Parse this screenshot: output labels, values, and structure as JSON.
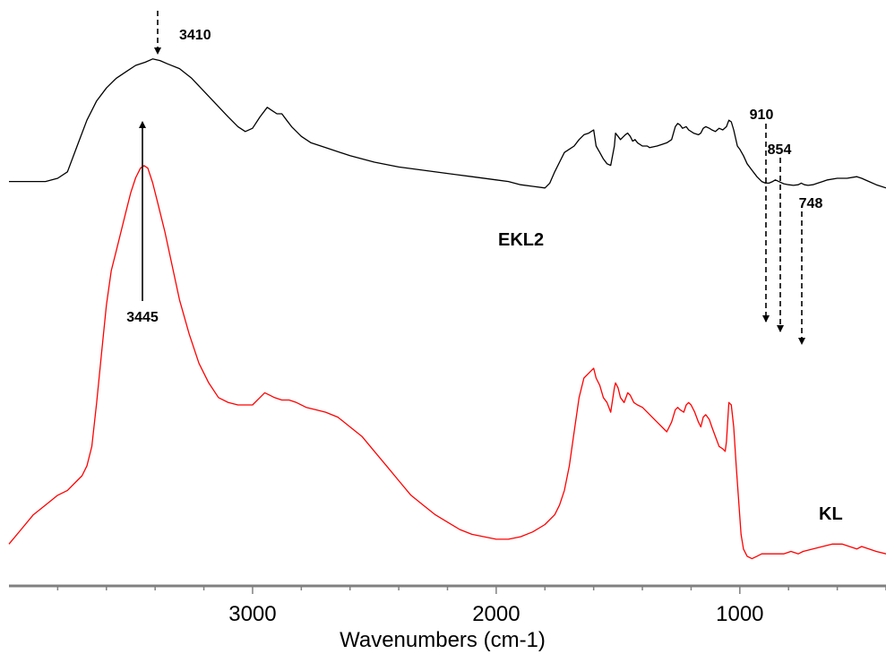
{
  "chart_data": {
    "type": "line",
    "title": "",
    "xlabel": "Wavenumbers (cm-1)",
    "ylabel": "",
    "xlim": [
      4000,
      400
    ],
    "x_reversed": true,
    "xticks": [
      3000,
      2000,
      1000
    ],
    "ylim": [
      0,
      1
    ],
    "grid": false,
    "legend": "none",
    "series": [
      {
        "name": "EKL2",
        "color": "#000000",
        "points": [
          [
            4000,
            0.59
          ],
          [
            3950,
            0.59
          ],
          [
            3900,
            0.59
          ],
          [
            3850,
            0.59
          ],
          [
            3800,
            0.6
          ],
          [
            3760,
            0.62
          ],
          [
            3720,
            0.7
          ],
          [
            3680,
            0.78
          ],
          [
            3640,
            0.84
          ],
          [
            3600,
            0.88
          ],
          [
            3560,
            0.91
          ],
          [
            3520,
            0.93
          ],
          [
            3480,
            0.95
          ],
          [
            3440,
            0.96
          ],
          [
            3410,
            0.97
          ],
          [
            3380,
            0.965
          ],
          [
            3350,
            0.955
          ],
          [
            3300,
            0.94
          ],
          [
            3250,
            0.91
          ],
          [
            3200,
            0.87
          ],
          [
            3150,
            0.83
          ],
          [
            3100,
            0.79
          ],
          [
            3060,
            0.76
          ],
          [
            3030,
            0.745
          ],
          [
            3000,
            0.755
          ],
          [
            2970,
            0.79
          ],
          [
            2940,
            0.82
          ],
          [
            2920,
            0.81
          ],
          [
            2900,
            0.8
          ],
          [
            2880,
            0.8
          ],
          [
            2860,
            0.78
          ],
          [
            2840,
            0.76
          ],
          [
            2800,
            0.73
          ],
          [
            2760,
            0.71
          ],
          [
            2700,
            0.695
          ],
          [
            2600,
            0.67
          ],
          [
            2500,
            0.65
          ],
          [
            2400,
            0.635
          ],
          [
            2300,
            0.625
          ],
          [
            2200,
            0.615
          ],
          [
            2100,
            0.605
          ],
          [
            2000,
            0.595
          ],
          [
            1950,
            0.59
          ],
          [
            1900,
            0.58
          ],
          [
            1850,
            0.575
          ],
          [
            1800,
            0.57
          ],
          [
            1780,
            0.585
          ],
          [
            1760,
            0.62
          ],
          [
            1740,
            0.65
          ],
          [
            1720,
            0.68
          ],
          [
            1700,
            0.69
          ],
          [
            1680,
            0.7
          ],
          [
            1660,
            0.72
          ],
          [
            1640,
            0.735
          ],
          [
            1620,
            0.74
          ],
          [
            1610,
            0.745
          ],
          [
            1600,
            0.75
          ],
          [
            1590,
            0.7
          ],
          [
            1575,
            0.68
          ],
          [
            1560,
            0.66
          ],
          [
            1545,
            0.645
          ],
          [
            1530,
            0.64
          ],
          [
            1515,
            0.7
          ],
          [
            1510,
            0.74
          ],
          [
            1500,
            0.73
          ],
          [
            1490,
            0.72
          ],
          [
            1470,
            0.735
          ],
          [
            1460,
            0.74
          ],
          [
            1450,
            0.73
          ],
          [
            1440,
            0.715
          ],
          [
            1430,
            0.72
          ],
          [
            1420,
            0.71
          ],
          [
            1400,
            0.7
          ],
          [
            1380,
            0.7
          ],
          [
            1370,
            0.695
          ],
          [
            1340,
            0.7
          ],
          [
            1320,
            0.705
          ],
          [
            1300,
            0.71
          ],
          [
            1280,
            0.72
          ],
          [
            1265,
            0.76
          ],
          [
            1255,
            0.77
          ],
          [
            1245,
            0.765
          ],
          [
            1235,
            0.755
          ],
          [
            1220,
            0.76
          ],
          [
            1210,
            0.75
          ],
          [
            1190,
            0.74
          ],
          [
            1170,
            0.735
          ],
          [
            1160,
            0.74
          ],
          [
            1150,
            0.755
          ],
          [
            1140,
            0.76
          ],
          [
            1125,
            0.755
          ],
          [
            1115,
            0.75
          ],
          [
            1100,
            0.745
          ],
          [
            1085,
            0.755
          ],
          [
            1070,
            0.75
          ],
          [
            1055,
            0.76
          ],
          [
            1045,
            0.78
          ],
          [
            1035,
            0.775
          ],
          [
            1025,
            0.75
          ],
          [
            1010,
            0.7
          ],
          [
            1000,
            0.69
          ],
          [
            985,
            0.67
          ],
          [
            970,
            0.645
          ],
          [
            950,
            0.625
          ],
          [
            930,
            0.605
          ],
          [
            910,
            0.59
          ],
          [
            895,
            0.585
          ],
          [
            880,
            0.585
          ],
          [
            865,
            0.59
          ],
          [
            854,
            0.595
          ],
          [
            840,
            0.59
          ],
          [
            820,
            0.583
          ],
          [
            800,
            0.58
          ],
          [
            780,
            0.578
          ],
          [
            760,
            0.58
          ],
          [
            748,
            0.585
          ],
          [
            735,
            0.58
          ],
          [
            720,
            0.578
          ],
          [
            700,
            0.58
          ],
          [
            680,
            0.585
          ],
          [
            660,
            0.59
          ],
          [
            640,
            0.595
          ],
          [
            600,
            0.6
          ],
          [
            560,
            0.6
          ],
          [
            520,
            0.605
          ],
          [
            500,
            0.6
          ],
          [
            470,
            0.59
          ],
          [
            440,
            0.58
          ],
          [
            400,
            0.57
          ]
        ]
      },
      {
        "name": "KL",
        "color": "#ff0000",
        "points": [
          [
            4000,
            0.06
          ],
          [
            3950,
            0.09
          ],
          [
            3900,
            0.12
          ],
          [
            3850,
            0.14
          ],
          [
            3800,
            0.16
          ],
          [
            3760,
            0.17
          ],
          [
            3720,
            0.19
          ],
          [
            3700,
            0.2
          ],
          [
            3680,
            0.22
          ],
          [
            3660,
            0.26
          ],
          [
            3640,
            0.35
          ],
          [
            3620,
            0.45
          ],
          [
            3600,
            0.55
          ],
          [
            3580,
            0.62
          ],
          [
            3560,
            0.66
          ],
          [
            3540,
            0.7
          ],
          [
            3520,
            0.74
          ],
          [
            3500,
            0.78
          ],
          [
            3480,
            0.81
          ],
          [
            3460,
            0.83
          ],
          [
            3445,
            0.835
          ],
          [
            3430,
            0.83
          ],
          [
            3410,
            0.8
          ],
          [
            3390,
            0.76
          ],
          [
            3360,
            0.7
          ],
          [
            3330,
            0.63
          ],
          [
            3300,
            0.56
          ],
          [
            3260,
            0.49
          ],
          [
            3220,
            0.43
          ],
          [
            3180,
            0.39
          ],
          [
            3140,
            0.36
          ],
          [
            3100,
            0.35
          ],
          [
            3060,
            0.345
          ],
          [
            3020,
            0.345
          ],
          [
            3000,
            0.345
          ],
          [
            2970,
            0.36
          ],
          [
            2950,
            0.37
          ],
          [
            2930,
            0.365
          ],
          [
            2910,
            0.36
          ],
          [
            2880,
            0.355
          ],
          [
            2850,
            0.355
          ],
          [
            2820,
            0.35
          ],
          [
            2780,
            0.34
          ],
          [
            2740,
            0.335
          ],
          [
            2700,
            0.33
          ],
          [
            2650,
            0.32
          ],
          [
            2600,
            0.3
          ],
          [
            2550,
            0.28
          ],
          [
            2500,
            0.25
          ],
          [
            2450,
            0.22
          ],
          [
            2400,
            0.19
          ],
          [
            2350,
            0.16
          ],
          [
            2300,
            0.14
          ],
          [
            2250,
            0.12
          ],
          [
            2200,
            0.105
          ],
          [
            2150,
            0.09
          ],
          [
            2100,
            0.08
          ],
          [
            2050,
            0.075
          ],
          [
            2000,
            0.07
          ],
          [
            1950,
            0.07
          ],
          [
            1900,
            0.075
          ],
          [
            1850,
            0.085
          ],
          [
            1800,
            0.1
          ],
          [
            1760,
            0.12
          ],
          [
            1740,
            0.14
          ],
          [
            1720,
            0.17
          ],
          [
            1700,
            0.22
          ],
          [
            1680,
            0.29
          ],
          [
            1660,
            0.36
          ],
          [
            1640,
            0.4
          ],
          [
            1620,
            0.41
          ],
          [
            1610,
            0.415
          ],
          [
            1600,
            0.42
          ],
          [
            1590,
            0.4
          ],
          [
            1575,
            0.385
          ],
          [
            1560,
            0.36
          ],
          [
            1545,
            0.35
          ],
          [
            1530,
            0.33
          ],
          [
            1515,
            0.38
          ],
          [
            1510,
            0.39
          ],
          [
            1500,
            0.38
          ],
          [
            1490,
            0.36
          ],
          [
            1475,
            0.35
          ],
          [
            1460,
            0.37
          ],
          [
            1450,
            0.365
          ],
          [
            1435,
            0.35
          ],
          [
            1420,
            0.345
          ],
          [
            1400,
            0.34
          ],
          [
            1380,
            0.33
          ],
          [
            1360,
            0.32
          ],
          [
            1340,
            0.31
          ],
          [
            1320,
            0.3
          ],
          [
            1300,
            0.29
          ],
          [
            1280,
            0.31
          ],
          [
            1265,
            0.335
          ],
          [
            1255,
            0.34
          ],
          [
            1245,
            0.335
          ],
          [
            1230,
            0.33
          ],
          [
            1220,
            0.345
          ],
          [
            1210,
            0.35
          ],
          [
            1200,
            0.345
          ],
          [
            1185,
            0.33
          ],
          [
            1170,
            0.31
          ],
          [
            1160,
            0.3
          ],
          [
            1150,
            0.32
          ],
          [
            1140,
            0.325
          ],
          [
            1125,
            0.315
          ],
          [
            1115,
            0.3
          ],
          [
            1100,
            0.28
          ],
          [
            1085,
            0.26
          ],
          [
            1070,
            0.255
          ],
          [
            1060,
            0.25
          ],
          [
            1055,
            0.27
          ],
          [
            1045,
            0.35
          ],
          [
            1035,
            0.345
          ],
          [
            1025,
            0.3
          ],
          [
            1015,
            0.22
          ],
          [
            1005,
            0.15
          ],
          [
            995,
            0.08
          ],
          [
            985,
            0.05
          ],
          [
            970,
            0.035
          ],
          [
            950,
            0.03
          ],
          [
            930,
            0.035
          ],
          [
            910,
            0.04
          ],
          [
            880,
            0.04
          ],
          [
            850,
            0.04
          ],
          [
            820,
            0.04
          ],
          [
            790,
            0.045
          ],
          [
            760,
            0.04
          ],
          [
            740,
            0.045
          ],
          [
            700,
            0.05
          ],
          [
            660,
            0.055
          ],
          [
            620,
            0.06
          ],
          [
            580,
            0.06
          ],
          [
            550,
            0.055
          ],
          [
            520,
            0.05
          ],
          [
            500,
            0.055
          ],
          [
            470,
            0.05
          ],
          [
            440,
            0.045
          ],
          [
            400,
            0.04
          ]
        ]
      }
    ],
    "annotations": [
      {
        "id": "a3410",
        "label": "3410",
        "x": 3410,
        "series": "EKL2",
        "style": "dashed",
        "direction": "down"
      },
      {
        "id": "a3445",
        "label": "3445",
        "x": 3445,
        "series": "KL",
        "style": "solid",
        "direction": "up"
      },
      {
        "id": "a910",
        "label": "910",
        "x": 910,
        "series": "EKL2",
        "style": "dashed",
        "direction": "down"
      },
      {
        "id": "a854",
        "label": "854",
        "x": 854,
        "series": "EKL2",
        "style": "dashed",
        "direction": "down"
      },
      {
        "id": "a748",
        "label": "748",
        "x": 748,
        "series": "EKL2",
        "style": "dashed",
        "direction": "down"
      }
    ]
  }
}
